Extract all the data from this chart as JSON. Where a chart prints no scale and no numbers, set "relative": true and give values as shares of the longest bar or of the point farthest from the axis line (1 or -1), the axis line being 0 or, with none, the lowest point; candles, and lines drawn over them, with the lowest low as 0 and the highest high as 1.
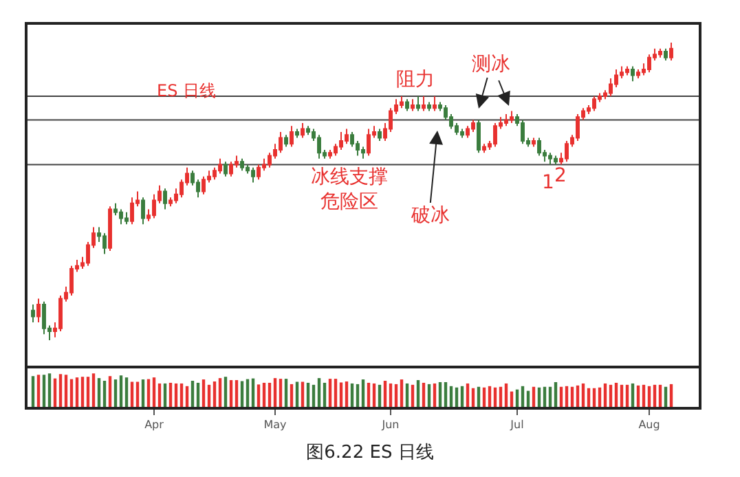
{
  "chart_data": [
    {
      "type": "candlestick",
      "title": "ES 日线",
      "relative": true,
      "tick_labels": false,
      "colors": [
        "#3b7d3e",
        "#e8312f",
        "#3b7d3e",
        "#3b7d3e",
        "#e8312f",
        "#e8312f",
        "#e8312f",
        "#e8312f",
        "#e8312f",
        "#e8312f",
        "#e8312f",
        "#e8312f",
        "#3b7d3e",
        "#3b7d3e",
        "#e8312f",
        "#3b7d3e",
        "#3b7d3e",
        "#3b7d3e",
        "#e8312f",
        "#e8312f",
        "#3b7d3e",
        "#e8312f",
        "#e8312f",
        "#e8312f",
        "#3b7d3e",
        "#e8312f",
        "#e8312f",
        "#e8312f",
        "#e8312f",
        "#3b7d3e",
        "#3b7d3e",
        "#e8312f",
        "#e8312f",
        "#e8312f",
        "#e8312f",
        "#3b7d3e",
        "#e8312f",
        "#e8312f",
        "#3b7d3e",
        "#3b7d3e",
        "#3b7d3e",
        "#e8312f",
        "#e8312f",
        "#e8312f",
        "#e8312f",
        "#e8312f",
        "#3b7d3e",
        "#e8312f",
        "#3b7d3e",
        "#e8312f",
        "#3b7d3e",
        "#3b7d3e",
        "#3b7d3e",
        "#3b7d3e",
        "#e8312f",
        "#e8312f",
        "#e8312f",
        "#e8312f",
        "#3b7d3e",
        "#3b7d3e",
        "#3b7d3e",
        "#e8312f",
        "#e8312f",
        "#3b7d3e",
        "#e8312f",
        "#e8312f",
        "#e8312f",
        "#e8312f",
        "#3b7d3e",
        "#e8312f",
        "#3b7d3e",
        "#e8312f",
        "#3b7d3e",
        "#e8312f",
        "#3b7d3e",
        "#3b7d3e",
        "#3b7d3e",
        "#3b7d3e",
        "#3b7d3e",
        "#e8312f",
        "#e8312f",
        "#3b7d3e",
        "#e8312f",
        "#e8312f",
        "#e8312f",
        "#e8312f",
        "#e8312f",
        "#e8312f",
        "#3b7d3e",
        "#3b7d3e",
        "#3b7d3e",
        "#e8312f",
        "#3b7d3e",
        "#3b7d3e",
        "#3b7d3e",
        "#3b7d3e",
        "#e8312f",
        "#e8312f",
        "#e8312f",
        "#e8312f",
        "#e8312f",
        "#e8312f",
        "#e8312f",
        "#e8312f",
        "#e8312f",
        "#e8312f",
        "#e8312f",
        "#e8312f",
        "#e8312f",
        "#3b7d3e",
        "#e8312f",
        "#e8312f",
        "#e8312f",
        "#e8312f",
        "#e8312f",
        "#3b7d3e",
        "#e8312f"
      ],
      "categories": [
        null,
        null,
        null,
        null,
        null,
        null,
        null,
        null,
        null,
        null,
        null,
        null,
        null,
        null,
        null,
        null,
        null,
        null,
        null,
        null,
        null,
        null,
        null,
        null,
        null,
        null,
        null,
        null,
        null,
        null,
        null,
        null,
        null,
        null,
        null,
        null,
        null,
        null,
        null,
        null,
        null,
        null,
        null,
        null,
        null,
        null,
        null,
        null,
        null,
        null,
        null,
        null,
        null,
        null,
        null,
        null,
        null,
        null,
        null,
        null,
        null,
        null,
        null,
        null,
        null,
        null,
        null,
        null,
        null,
        null,
        null,
        null,
        null,
        null,
        null,
        null,
        null,
        null,
        null,
        null,
        null,
        null,
        null,
        null,
        null,
        null,
        null,
        null,
        null,
        null,
        null,
        null,
        null,
        null,
        null,
        null,
        null,
        null,
        null,
        null,
        null,
        null,
        null,
        null,
        null,
        null,
        null,
        null,
        null,
        null,
        null,
        null,
        null,
        null,
        null,
        null,
        null
      ],
      "ohlc": [
        [
          0.1,
          0.12,
          0.06,
          0.08
        ],
        [
          0.08,
          0.14,
          0.06,
          0.12
        ],
        [
          0.12,
          0.13,
          0.02,
          0.04
        ],
        [
          0.04,
          0.05,
          0.0,
          0.03
        ],
        [
          0.03,
          0.06,
          0.01,
          0.04
        ],
        [
          0.04,
          0.15,
          0.03,
          0.14
        ],
        [
          0.14,
          0.18,
          0.13,
          0.16
        ],
        [
          0.16,
          0.25,
          0.15,
          0.24
        ],
        [
          0.24,
          0.27,
          0.23,
          0.25
        ],
        [
          0.25,
          0.28,
          0.24,
          0.26
        ],
        [
          0.26,
          0.33,
          0.25,
          0.32
        ],
        [
          0.32,
          0.38,
          0.31,
          0.36
        ],
        [
          0.36,
          0.38,
          0.33,
          0.35
        ],
        [
          0.35,
          0.36,
          0.29,
          0.31
        ],
        [
          0.31,
          0.45,
          0.3,
          0.44
        ],
        [
          0.44,
          0.46,
          0.42,
          0.43
        ],
        [
          0.43,
          0.44,
          0.39,
          0.41
        ],
        [
          0.41,
          0.43,
          0.39,
          0.4
        ],
        [
          0.4,
          0.48,
          0.39,
          0.46
        ],
        [
          0.46,
          0.5,
          0.45,
          0.47
        ],
        [
          0.47,
          0.48,
          0.39,
          0.41
        ],
        [
          0.41,
          0.44,
          0.4,
          0.42
        ],
        [
          0.42,
          0.49,
          0.41,
          0.47
        ],
        [
          0.47,
          0.52,
          0.46,
          0.5
        ],
        [
          0.5,
          0.51,
          0.44,
          0.46
        ],
        [
          0.46,
          0.48,
          0.45,
          0.47
        ],
        [
          0.47,
          0.51,
          0.46,
          0.49
        ],
        [
          0.49,
          0.54,
          0.48,
          0.53
        ],
        [
          0.53,
          0.58,
          0.52,
          0.56
        ],
        [
          0.56,
          0.57,
          0.52,
          0.53
        ],
        [
          0.53,
          0.54,
          0.48,
          0.5
        ],
        [
          0.5,
          0.55,
          0.49,
          0.54
        ],
        [
          0.54,
          0.57,
          0.53,
          0.55
        ],
        [
          0.55,
          0.58,
          0.54,
          0.57
        ],
        [
          0.57,
          0.61,
          0.56,
          0.59
        ],
        [
          0.59,
          0.6,
          0.55,
          0.56
        ],
        [
          0.56,
          0.6,
          0.55,
          0.59
        ],
        [
          0.59,
          0.62,
          0.58,
          0.6
        ],
        [
          0.6,
          0.61,
          0.57,
          0.58
        ],
        [
          0.58,
          0.59,
          0.56,
          0.57
        ],
        [
          0.57,
          0.58,
          0.53,
          0.55
        ],
        [
          0.55,
          0.59,
          0.54,
          0.58
        ],
        [
          0.58,
          0.61,
          0.57,
          0.59
        ],
        [
          0.59,
          0.63,
          0.58,
          0.62
        ],
        [
          0.62,
          0.66,
          0.61,
          0.64
        ],
        [
          0.64,
          0.7,
          0.63,
          0.68
        ],
        [
          0.68,
          0.69,
          0.65,
          0.66
        ],
        [
          0.66,
          0.72,
          0.65,
          0.7
        ],
        [
          0.7,
          0.71,
          0.68,
          0.69
        ],
        [
          0.69,
          0.73,
          0.68,
          0.71
        ],
        [
          0.71,
          0.72,
          0.69,
          0.7
        ],
        [
          0.7,
          0.71,
          0.67,
          0.68
        ],
        [
          0.68,
          0.69,
          0.61,
          0.63
        ],
        [
          0.63,
          0.64,
          0.61,
          0.62
        ],
        [
          0.62,
          0.64,
          0.61,
          0.63
        ],
        [
          0.63,
          0.66,
          0.62,
          0.65
        ],
        [
          0.65,
          0.7,
          0.64,
          0.67
        ],
        [
          0.67,
          0.71,
          0.66,
          0.69
        ],
        [
          0.69,
          0.7,
          0.65,
          0.66
        ],
        [
          0.66,
          0.67,
          0.62,
          0.64
        ],
        [
          0.64,
          0.65,
          0.61,
          0.63
        ],
        [
          0.63,
          0.71,
          0.62,
          0.69
        ],
        [
          0.69,
          0.72,
          0.68,
          0.7
        ],
        [
          0.7,
          0.71,
          0.67,
          0.68
        ],
        [
          0.68,
          0.73,
          0.67,
          0.71
        ],
        [
          0.71,
          0.78,
          0.7,
          0.77
        ],
        [
          0.77,
          0.81,
          0.76,
          0.79
        ],
        [
          0.79,
          0.82,
          0.78,
          0.8
        ],
        [
          0.8,
          0.81,
          0.77,
          0.78
        ],
        [
          0.78,
          0.81,
          0.77,
          0.79
        ],
        [
          0.79,
          0.82,
          0.77,
          0.78
        ],
        [
          0.78,
          0.82,
          0.77,
          0.79
        ],
        [
          0.79,
          0.8,
          0.77,
          0.78
        ],
        [
          0.78,
          0.82,
          0.77,
          0.79
        ],
        [
          0.79,
          0.8,
          0.77,
          0.78
        ],
        [
          0.78,
          0.79,
          0.74,
          0.75
        ],
        [
          0.75,
          0.76,
          0.71,
          0.72
        ],
        [
          0.72,
          0.73,
          0.69,
          0.7
        ],
        [
          0.7,
          0.71,
          0.68,
          0.69
        ],
        [
          0.69,
          0.72,
          0.68,
          0.71
        ],
        [
          0.71,
          0.74,
          0.7,
          0.73
        ],
        [
          0.73,
          0.74,
          0.63,
          0.64
        ],
        [
          0.64,
          0.66,
          0.63,
          0.65
        ],
        [
          0.65,
          0.67,
          0.64,
          0.66
        ],
        [
          0.66,
          0.73,
          0.65,
          0.72
        ],
        [
          0.72,
          0.75,
          0.71,
          0.73
        ],
        [
          0.73,
          0.76,
          0.72,
          0.74
        ],
        [
          0.74,
          0.77,
          0.73,
          0.75
        ],
        [
          0.75,
          0.76,
          0.72,
          0.73
        ],
        [
          0.73,
          0.74,
          0.66,
          0.67
        ],
        [
          0.67,
          0.68,
          0.65,
          0.66
        ],
        [
          0.66,
          0.68,
          0.65,
          0.67
        ],
        [
          0.67,
          0.68,
          0.62,
          0.63
        ],
        [
          0.63,
          0.64,
          0.6,
          0.62
        ],
        [
          0.62,
          0.63,
          0.59,
          0.61
        ],
        [
          0.61,
          0.62,
          0.59,
          0.6
        ],
        [
          0.6,
          0.63,
          0.59,
          0.61
        ],
        [
          0.61,
          0.67,
          0.6,
          0.66
        ],
        [
          0.66,
          0.69,
          0.65,
          0.68
        ],
        [
          0.68,
          0.76,
          0.67,
          0.75
        ],
        [
          0.75,
          0.78,
          0.74,
          0.77
        ],
        [
          0.77,
          0.79,
          0.76,
          0.78
        ],
        [
          0.78,
          0.82,
          0.77,
          0.81
        ],
        [
          0.81,
          0.83,
          0.8,
          0.82
        ],
        [
          0.82,
          0.84,
          0.81,
          0.83
        ],
        [
          0.83,
          0.88,
          0.82,
          0.86
        ],
        [
          0.86,
          0.91,
          0.85,
          0.89
        ],
        [
          0.89,
          0.92,
          0.88,
          0.9
        ],
        [
          0.9,
          0.92,
          0.89,
          0.91
        ],
        [
          0.91,
          0.92,
          0.87,
          0.89
        ],
        [
          0.89,
          0.91,
          0.88,
          0.9
        ],
        [
          0.9,
          0.93,
          0.89,
          0.91
        ],
        [
          0.91,
          0.96,
          0.9,
          0.95
        ],
        [
          0.95,
          0.98,
          0.94,
          0.96
        ],
        [
          0.96,
          0.98,
          0.95,
          0.97
        ],
        [
          0.97,
          0.98,
          0.94,
          0.95
        ],
        [
          0.95,
          1.0,
          0.94,
          0.98
        ]
      ],
      "ref_lines": [
        {
          "axis": "y",
          "value": 0.82,
          "color": "#444444"
        },
        {
          "axis": "y",
          "value": 0.74,
          "color": "#444444"
        },
        {
          "axis": "y",
          "value": 0.59,
          "color": "#444444"
        }
      ],
      "annotations": [
        "阻力",
        "测冰",
        "冰线支撑",
        "危险区",
        "破冰",
        "1",
        "2",
        "图6.22 ES 日线"
      ]
    },
    {
      "type": "bar",
      "relative": true,
      "tick_labels": "x",
      "categories": [
        null,
        null,
        null,
        null,
        null,
        null,
        null,
        null,
        null,
        null,
        null,
        null,
        null,
        null,
        null,
        null,
        null,
        null,
        null,
        null,
        null,
        null,
        "Apr",
        null,
        null,
        null,
        null,
        null,
        null,
        null,
        null,
        null,
        null,
        null,
        null,
        null,
        null,
        null,
        null,
        null,
        null,
        null,
        null,
        null,
        "May",
        null,
        null,
        null,
        null,
        null,
        null,
        null,
        null,
        null,
        null,
        null,
        null,
        null,
        null,
        null,
        null,
        null,
        null,
        null,
        null,
        "Jun",
        null,
        null,
        null,
        null,
        null,
        null,
        null,
        null,
        null,
        null,
        null,
        null,
        null,
        null,
        null,
        null,
        null,
        null,
        null,
        null,
        null,
        null,
        "Jul",
        null,
        null,
        null,
        null,
        null,
        null,
        null,
        null,
        null,
        null,
        null,
        null,
        null,
        null,
        null,
        null,
        null,
        null,
        null,
        null,
        null,
        null,
        null,
        "Aug",
        null,
        null,
        null,
        null
      ],
      "values": [
        0.92,
        0.96,
        0.96,
        1.0,
        0.85,
        0.98,
        0.96,
        0.83,
        0.88,
        0.9,
        0.9,
        1.0,
        0.86,
        0.78,
        0.92,
        0.82,
        0.94,
        0.88,
        0.75,
        0.75,
        0.82,
        0.83,
        0.88,
        0.7,
        0.7,
        0.72,
        0.7,
        0.7,
        0.62,
        0.78,
        0.72,
        0.82,
        0.66,
        0.76,
        0.86,
        0.9,
        0.8,
        0.8,
        0.77,
        0.83,
        0.85,
        0.67,
        0.72,
        0.72,
        0.86,
        0.84,
        0.84,
        0.68,
        0.75,
        0.75,
        0.72,
        0.66,
        0.86,
        0.72,
        0.84,
        0.84,
        0.73,
        0.76,
        0.7,
        0.68,
        0.82,
        0.72,
        0.7,
        0.66,
        0.78,
        0.7,
        0.68,
        0.82,
        0.7,
        0.66,
        0.8,
        0.72,
        0.68,
        0.7,
        0.74,
        0.74,
        0.62,
        0.58,
        0.62,
        0.7,
        0.56,
        0.6,
        0.58,
        0.62,
        0.58,
        0.6,
        0.7,
        0.46,
        0.52,
        0.62,
        0.48,
        0.6,
        0.58,
        0.6,
        0.6,
        0.74,
        0.6,
        0.62,
        0.6,
        0.64,
        0.7,
        0.56,
        0.56,
        0.58,
        0.7,
        0.66,
        0.72,
        0.66,
        0.66,
        0.7,
        0.64,
        0.66,
        0.62,
        0.66,
        0.66,
        0.6,
        0.68
      ],
      "colors": [
        "#3b7d3e",
        "#e8312f",
        "#3b7d3e",
        "#3b7d3e",
        "#e8312f",
        "#e8312f",
        "#e8312f",
        "#e8312f",
        "#e8312f",
        "#e8312f",
        "#e8312f",
        "#e8312f",
        "#3b7d3e",
        "#3b7d3e",
        "#e8312f",
        "#3b7d3e",
        "#3b7d3e",
        "#3b7d3e",
        "#e8312f",
        "#e8312f",
        "#3b7d3e",
        "#e8312f",
        "#e8312f",
        "#e8312f",
        "#3b7d3e",
        "#e8312f",
        "#e8312f",
        "#e8312f",
        "#e8312f",
        "#3b7d3e",
        "#3b7d3e",
        "#e8312f",
        "#e8312f",
        "#e8312f",
        "#e8312f",
        "#3b7d3e",
        "#e8312f",
        "#e8312f",
        "#3b7d3e",
        "#3b7d3e",
        "#3b7d3e",
        "#e8312f",
        "#e8312f",
        "#e8312f",
        "#e8312f",
        "#e8312f",
        "#3b7d3e",
        "#e8312f",
        "#3b7d3e",
        "#e8312f",
        "#3b7d3e",
        "#3b7d3e",
        "#3b7d3e",
        "#3b7d3e",
        "#e8312f",
        "#e8312f",
        "#e8312f",
        "#e8312f",
        "#3b7d3e",
        "#3b7d3e",
        "#3b7d3e",
        "#e8312f",
        "#e8312f",
        "#3b7d3e",
        "#e8312f",
        "#e8312f",
        "#e8312f",
        "#e8312f",
        "#3b7d3e",
        "#e8312f",
        "#3b7d3e",
        "#e8312f",
        "#3b7d3e",
        "#e8312f",
        "#3b7d3e",
        "#3b7d3e",
        "#3b7d3e",
        "#3b7d3e",
        "#3b7d3e",
        "#e8312f",
        "#e8312f",
        "#3b7d3e",
        "#e8312f",
        "#e8312f",
        "#e8312f",
        "#e8312f",
        "#e8312f",
        "#e8312f",
        "#3b7d3e",
        "#3b7d3e",
        "#3b7d3e",
        "#e8312f",
        "#3b7d3e",
        "#3b7d3e",
        "#3b7d3e",
        "#3b7d3e",
        "#e8312f",
        "#e8312f",
        "#e8312f",
        "#e8312f",
        "#e8312f",
        "#e8312f",
        "#e8312f",
        "#e8312f",
        "#e8312f",
        "#e8312f",
        "#e8312f",
        "#e8312f",
        "#e8312f",
        "#3b7d3e",
        "#e8312f",
        "#e8312f",
        "#e8312f",
        "#e8312f",
        "#e8312f",
        "#3b7d3e",
        "#e8312f"
      ]
    }
  ]
}
